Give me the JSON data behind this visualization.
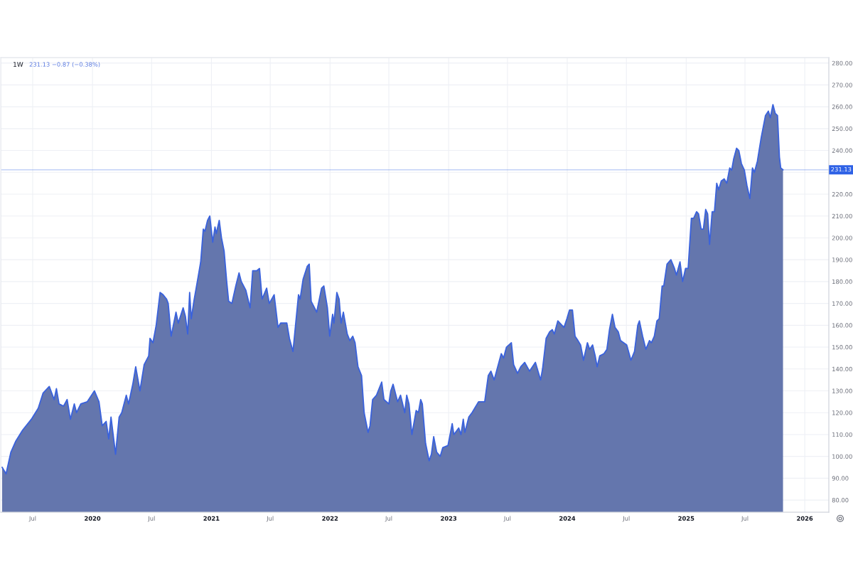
{
  "chart_data": {
    "type": "area",
    "title": "1W",
    "subtitle": "231.13 −0.87 (−0.38%)",
    "color": "#3a62dc",
    "x": [
      "2019-03-29",
      "2019-04-10",
      "2019-04-25",
      "2019-05-10",
      "2019-05-31",
      "2019-06-27",
      "2019-07-18",
      "2019-08-02",
      "2019-08-21",
      "2019-09-05",
      "2019-09-12",
      "2019-09-20",
      "2019-10-04",
      "2019-10-15",
      "2019-10-25",
      "2019-11-06",
      "2019-11-13",
      "2019-11-26",
      "2019-12-16",
      "2020-01-07",
      "2020-01-21",
      "2020-01-31",
      "2020-02-12",
      "2020-02-20",
      "2020-02-27",
      "2020-03-12",
      "2020-03-23",
      "2020-03-31",
      "2020-04-14",
      "2020-04-21",
      "2020-05-04",
      "2020-05-13",
      "2020-05-26",
      "2020-06-08",
      "2020-06-22",
      "2020-06-26",
      "2020-07-05",
      "2020-07-15",
      "2020-07-27",
      "2020-08-05",
      "2020-08-16",
      "2020-08-21",
      "2020-08-30",
      "2020-09-14",
      "2020-09-21",
      "2020-10-06",
      "2020-10-13",
      "2020-10-20",
      "2020-10-26",
      "2020-10-31",
      "2020-11-08",
      "2020-11-21",
      "2020-11-29",
      "2020-12-07",
      "2020-12-12",
      "2020-12-20",
      "2020-12-27",
      "2021-01-05",
      "2021-01-12",
      "2021-01-16",
      "2021-01-25",
      "2021-02-01",
      "2021-02-09",
      "2021-02-17",
      "2021-02-23",
      "2021-03-05",
      "2021-03-17",
      "2021-03-27",
      "2021-04-03",
      "2021-04-17",
      "2021-04-30",
      "2021-05-08",
      "2021-05-21",
      "2021-05-29",
      "2021-06-06",
      "2021-06-20",
      "2021-06-28",
      "2021-07-13",
      "2021-07-25",
      "2021-08-02",
      "2021-08-21",
      "2021-08-29",
      "2021-09-09",
      "2021-09-26",
      "2021-10-01",
      "2021-10-10",
      "2021-10-23",
      "2021-10-29",
      "2021-11-04",
      "2021-11-21",
      "2021-12-06",
      "2021-12-13",
      "2021-12-24",
      "2021-12-31",
      "2022-01-09",
      "2022-01-13",
      "2022-01-22",
      "2022-01-29",
      "2022-02-04",
      "2022-02-11",
      "2022-02-23",
      "2022-03-03",
      "2022-03-12",
      "2022-03-19",
      "2022-03-28",
      "2022-04-08",
      "2022-04-16",
      "2022-04-28",
      "2022-05-04",
      "2022-05-12",
      "2022-05-24",
      "2022-06-09",
      "2022-06-16",
      "2022-07-01",
      "2022-07-07",
      "2022-07-14",
      "2022-07-28",
      "2022-08-06",
      "2022-08-19",
      "2022-08-25",
      "2022-09-01",
      "2022-09-10",
      "2022-09-23",
      "2022-09-30",
      "2022-10-07",
      "2022-10-12",
      "2022-10-22",
      "2022-11-02",
      "2022-11-09",
      "2022-11-16",
      "2022-11-25",
      "2022-12-06",
      "2022-12-14",
      "2022-12-30",
      "2023-01-12",
      "2023-01-17",
      "2023-02-01",
      "2023-02-08",
      "2023-02-15",
      "2023-02-20",
      "2023-03-04",
      "2023-03-14",
      "2023-04-03",
      "2023-04-22",
      "2023-05-03",
      "2023-05-11",
      "2023-05-21",
      "2023-06-01",
      "2023-06-12",
      "2023-06-19",
      "2023-06-28",
      "2023-07-13",
      "2023-07-20",
      "2023-08-01",
      "2023-08-11",
      "2023-08-23",
      "2023-09-07",
      "2023-09-25",
      "2023-10-11",
      "2023-10-17",
      "2023-10-28",
      "2023-11-08",
      "2023-11-16",
      "2023-11-22",
      "2023-12-03",
      "2023-12-22",
      "2023-12-31",
      "2024-01-08",
      "2024-01-17",
      "2024-01-25",
      "2024-02-03",
      "2024-02-11",
      "2024-02-20",
      "2024-03-03",
      "2024-03-10",
      "2024-03-19",
      "2024-03-27",
      "2024-04-02",
      "2024-04-10",
      "2024-04-23",
      "2024-05-02",
      "2024-05-10",
      "2024-05-19",
      "2024-05-27",
      "2024-06-06",
      "2024-06-13",
      "2024-07-02",
      "2024-07-15",
      "2024-07-26",
      "2024-08-05",
      "2024-08-10",
      "2024-08-20",
      "2024-08-30",
      "2024-09-10",
      "2024-09-16",
      "2024-09-25",
      "2024-10-03",
      "2024-10-10",
      "2024-10-19",
      "2024-10-24",
      "2024-11-03",
      "2024-11-15",
      "2024-11-26",
      "2024-12-02",
      "2024-12-13",
      "2024-12-21",
      "2024-12-30",
      "2025-01-07",
      "2025-01-17",
      "2025-01-24",
      "2025-02-02",
      "2025-02-08",
      "2025-02-16",
      "2025-02-23",
      "2025-03-02",
      "2025-03-08",
      "2025-03-14",
      "2025-03-22",
      "2025-03-29",
      "2025-04-05",
      "2025-04-11",
      "2025-04-19",
      "2025-04-28",
      "2025-05-06",
      "2025-05-15",
      "2025-05-21",
      "2025-05-27",
      "2025-06-05",
      "2025-06-12",
      "2025-06-20",
      "2025-06-29",
      "2025-07-07",
      "2025-07-16",
      "2025-07-24",
      "2025-07-30",
      "2025-08-08",
      "2025-08-20",
      "2025-09-02",
      "2025-09-11",
      "2025-09-17",
      "2025-09-25",
      "2025-10-02",
      "2025-10-09",
      "2025-10-15",
      "2025-10-19",
      "2025-10-26"
    ],
    "values": [
      95,
      92,
      102,
      107,
      112,
      117,
      122,
      129,
      132,
      126,
      131,
      124,
      123,
      126,
      117,
      124,
      120,
      124,
      125,
      130,
      125,
      114,
      116,
      108,
      118,
      101,
      118,
      120,
      128,
      124,
      133,
      141,
      130,
      142,
      146,
      154,
      152,
      160,
      175,
      174,
      172,
      170,
      155,
      166,
      161,
      168,
      164,
      156,
      175,
      163,
      171,
      182,
      189,
      204,
      203,
      208,
      210,
      198,
      205,
      202,
      208,
      200,
      194,
      180,
      171,
      170,
      178,
      184,
      180,
      176,
      168,
      185,
      185,
      186,
      172,
      177,
      170,
      174,
      159,
      161,
      161,
      154,
      148,
      174,
      172,
      181,
      187,
      188,
      171,
      166,
      177,
      178,
      168,
      155,
      165,
      161,
      175,
      172,
      161,
      166,
      156,
      153,
      155,
      152,
      141,
      137,
      120,
      111,
      114,
      126,
      128,
      134,
      126,
      124,
      130,
      133,
      125,
      128,
      120,
      128,
      124,
      110,
      121,
      120,
      126,
      124,
      106,
      98,
      101,
      109,
      102,
      100,
      104,
      105,
      115,
      110,
      113,
      110,
      117,
      111,
      118,
      120,
      125,
      125,
      137,
      139,
      135,
      141,
      147,
      145,
      150,
      152,
      142,
      138,
      141,
      143,
      139,
      143,
      135,
      140,
      154,
      157,
      158,
      156,
      162,
      159,
      163,
      167,
      167,
      155,
      153,
      151,
      144,
      152,
      149,
      151,
      146,
      141,
      146,
      147,
      149,
      158,
      165,
      159,
      157,
      153,
      151,
      144,
      148,
      160,
      162,
      155,
      149,
      153,
      152,
      155,
      162,
      163,
      178,
      178,
      188,
      190,
      186,
      183,
      189,
      180,
      186,
      186,
      209,
      209,
      212,
      211,
      204,
      204,
      213,
      211,
      197,
      212,
      212,
      225,
      222,
      226,
      227,
      225,
      232,
      231,
      236,
      241,
      240,
      234,
      231,
      224,
      218,
      232,
      230,
      235,
      246,
      256,
      258,
      255,
      261,
      257,
      256,
      237,
      232,
      231.13
    ],
    "xlim": [
      "2019-03-25",
      "2026-03-16"
    ],
    "xticks": [
      {
        "value": "2019-07-01",
        "label": "Jul"
      },
      {
        "value": "2020-01-01",
        "label": "2020"
      },
      {
        "value": "2020-07-01",
        "label": "Jul"
      },
      {
        "value": "2021-01-01",
        "label": "2021"
      },
      {
        "value": "2021-07-01",
        "label": "Jul"
      },
      {
        "value": "2022-01-01",
        "label": "2022"
      },
      {
        "value": "2022-07-01",
        "label": "Jul"
      },
      {
        "value": "2023-01-01",
        "label": "2023"
      },
      {
        "value": "2023-07-01",
        "label": "Jul"
      },
      {
        "value": "2024-01-01",
        "label": "2024"
      },
      {
        "value": "2024-07-01",
        "label": "Jul"
      },
      {
        "value": "2025-01-01",
        "label": "2025"
      },
      {
        "value": "2025-07-01",
        "label": "Jul"
      },
      {
        "value": "2026-01-01",
        "label": "2026"
      }
    ],
    "ylim": [
      74.5,
      282.5
    ],
    "yticks": [
      {
        "value": 80,
        "label": "80.00"
      },
      {
        "value": 90,
        "label": "90.00"
      },
      {
        "value": 100,
        "label": "100.00"
      },
      {
        "value": 110,
        "label": "110.00"
      },
      {
        "value": 120,
        "label": "120.00"
      },
      {
        "value": 130,
        "label": "130.00"
      },
      {
        "value": 140,
        "label": "140.00"
      },
      {
        "value": 150,
        "label": "150.00"
      },
      {
        "value": 160,
        "label": "160.00"
      },
      {
        "value": 170,
        "label": "170.00"
      },
      {
        "value": 180,
        "label": "180.00"
      },
      {
        "value": 190,
        "label": "190.00"
      },
      {
        "value": 200,
        "label": "200.00"
      },
      {
        "value": 210,
        "label": "210.00"
      },
      {
        "value": 220,
        "label": "220.00"
      },
      {
        "value": 230,
        "label": null
      },
      {
        "value": 240,
        "label": "240.00"
      },
      {
        "value": 250,
        "label": "250.00"
      },
      {
        "value": 260,
        "label": "260.00"
      },
      {
        "value": 270,
        "label": "270.00"
      },
      {
        "value": 280,
        "label": "280.00"
      }
    ],
    "ref_lines": [
      {
        "axis": "y",
        "value": 231.13,
        "label": "231.13",
        "color": "#2f62e6"
      }
    ],
    "grid": true,
    "line_style": "solid"
  }
}
